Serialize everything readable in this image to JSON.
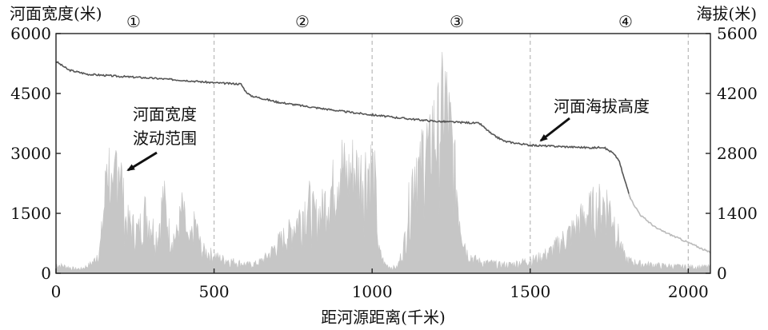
{
  "chart_data": {
    "type": "area",
    "xlabel": "距河源距离(千米)",
    "ylabel_left": "河面宽度(米)",
    "ylabel_right": "海拔(米)",
    "xlim": [
      0,
      2070
    ],
    "ylim_left": [
      0,
      6000
    ],
    "ylim_right": [
      0,
      5600
    ],
    "x_ticks": [
      "0",
      "500",
      "1000",
      "1500",
      "2000"
    ],
    "x_tick_values": [
      0,
      500,
      1000,
      1500,
      2000
    ],
    "y_left_ticks": [
      "0",
      "1500",
      "3000",
      "4500",
      "6000"
    ],
    "y_left_tick_values": [
      0,
      1500,
      3000,
      4500,
      6000
    ],
    "y_right_ticks": [
      "0",
      "1400",
      "2800",
      "4200",
      "5600"
    ],
    "y_right_tick_values": [
      0,
      1400,
      2800,
      4200,
      5600
    ],
    "section_dividers": [
      500,
      1000,
      1500,
      2000
    ],
    "section_labels": [
      {
        "label": "①",
        "x": 250
      },
      {
        "label": "②",
        "x": 750
      },
      {
        "label": "③",
        "x": 1250
      },
      {
        "label": "④",
        "x": 1800
      }
    ],
    "colors": {
      "elevation": "#555555",
      "elevation_tail": "#bbbbbb",
      "width": "#c6c6c6",
      "divider": "#bdbdbd"
    },
    "series": [
      {
        "name": "河面海拔高度",
        "axis": "right",
        "x": [
          0,
          40,
          100,
          200,
          300,
          400,
          500,
          585,
          600,
          615,
          700,
          800,
          900,
          1000,
          1100,
          1200,
          1300,
          1340,
          1380,
          1420,
          1500,
          1600,
          1700,
          1730,
          1760,
          1780,
          1800,
          1820,
          1850,
          1900,
          1950,
          2000,
          2070
        ],
        "values": [
          4950,
          4750,
          4650,
          4600,
          4560,
          4510,
          4450,
          4420,
          4250,
          4150,
          4000,
          3890,
          3790,
          3700,
          3620,
          3550,
          3520,
          3500,
          3240,
          3080,
          2990,
          2960,
          2930,
          2950,
          2820,
          2650,
          2150,
          1700,
          1350,
          1050,
          880,
          720,
          480
        ]
      },
      {
        "name": "河面宽度波动范围",
        "axis": "left",
        "type": "band",
        "x": [
          0,
          20,
          40,
          60,
          80,
          100,
          120,
          140,
          155,
          160,
          170,
          180,
          190,
          200,
          210,
          220,
          240,
          260,
          280,
          300,
          320,
          340,
          360,
          380,
          400,
          420,
          440,
          460,
          480,
          500,
          520,
          540,
          560,
          580,
          600,
          620,
          640,
          660,
          680,
          700,
          720,
          740,
          760,
          780,
          800,
          820,
          840,
          860,
          880,
          900,
          920,
          940,
          960,
          980,
          1000,
          1010,
          1020,
          1040,
          1060,
          1080,
          1100,
          1110,
          1120,
          1130,
          1140,
          1150,
          1160,
          1170,
          1180,
          1190,
          1200,
          1210,
          1220,
          1230,
          1240,
          1250,
          1260,
          1270,
          1280,
          1300,
          1320,
          1340,
          1360,
          1380,
          1400,
          1420,
          1440,
          1460,
          1480,
          1500,
          1520,
          1540,
          1560,
          1580,
          1600,
          1620,
          1640,
          1660,
          1680,
          1700,
          1720,
          1740,
          1760,
          1780,
          1800,
          1820,
          1840,
          1860,
          1880,
          1900,
          1920,
          1940,
          1960,
          1980,
          2000,
          2020,
          2040,
          2060,
          2070
        ],
        "values": [
          300,
          250,
          200,
          150,
          150,
          250,
          400,
          900,
          2500,
          3900,
          3500,
          2200,
          3800,
          4100,
          2800,
          1800,
          1600,
          1400,
          2100,
          1700,
          1200,
          2600,
          1300,
          1200,
          2200,
          900,
          1700,
          800,
          700,
          600,
          500,
          450,
          400,
          350,
          300,
          300,
          350,
          500,
          700,
          1000,
          1200,
          1400,
          1700,
          2100,
          2400,
          1900,
          2100,
          2600,
          3000,
          3800,
          3200,
          3600,
          3300,
          3500,
          3600,
          3000,
          800,
          300,
          200,
          200,
          900,
          1800,
          2600,
          3400,
          3900,
          3200,
          4100,
          4500,
          3800,
          5000,
          4600,
          4900,
          5500,
          6000,
          5200,
          4500,
          3600,
          2600,
          1700,
          700,
          500,
          400,
          350,
          350,
          300,
          300,
          300,
          350,
          400,
          450,
          500,
          600,
          700,
          900,
          1100,
          1300,
          1500,
          1800,
          2000,
          2200,
          2300,
          2400,
          2000,
          1200,
          500,
          400,
          350,
          300,
          300,
          280,
          260,
          250,
          240,
          230,
          220,
          220,
          220,
          220,
          220
        ],
        "lower": 60
      }
    ],
    "annotations": [
      {
        "text_lines": [
          "河面宽度",
          "波动范围"
        ],
        "points_to": [
          225,
          3200
        ],
        "axis": "left"
      },
      {
        "text_lines": [
          "河面海拔高度"
        ],
        "points_to": [
          1530,
          2990
        ],
        "axis": "right"
      }
    ]
  }
}
